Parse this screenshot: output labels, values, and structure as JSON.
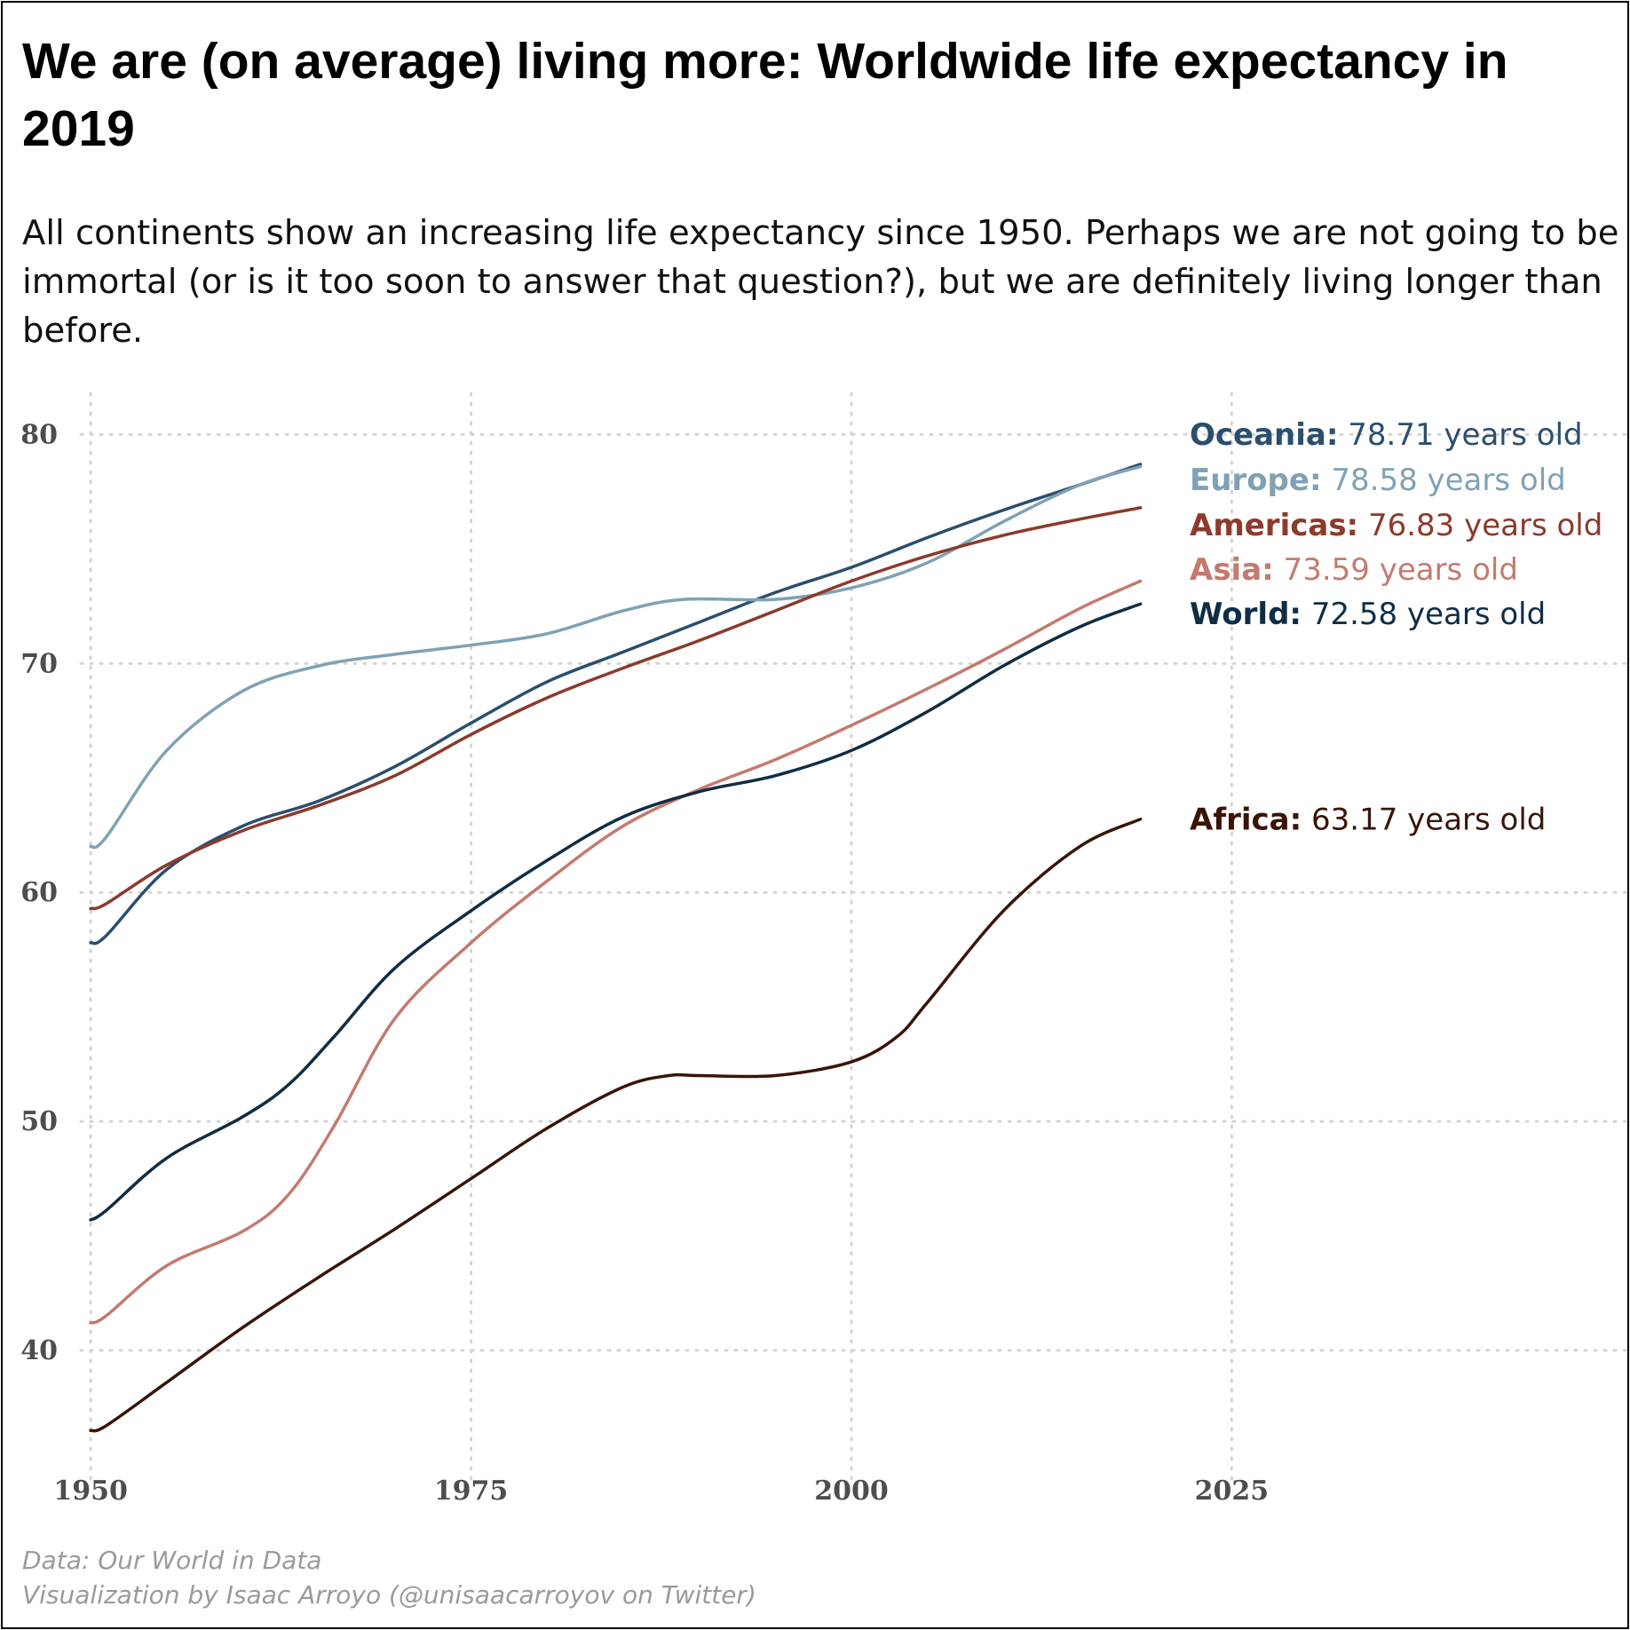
{
  "chart_data": {
    "type": "line",
    "title": "We are (on average) living more: Worldwide life expectancy in 2019",
    "subtitle": "All continents show an increasing life expectancy since 1950. Perhaps we are not going to be immortal (or is it too soon to answer that question?), but we are definitely living longer than before.",
    "xlabel": "",
    "ylabel": "",
    "xlim": [
      1948.3,
      2051
    ],
    "ylim": [
      34.3,
      81.8
    ],
    "x_ticks": [
      1950,
      1975,
      2000,
      2025
    ],
    "y_ticks": [
      40,
      50,
      60,
      70,
      80
    ],
    "grid": true,
    "legend": "direct labels at right end of lines",
    "label_suffix": " years old",
    "series": [
      {
        "name": "Oceania",
        "label_value": "78.71",
        "color": "#2a4e6e",
        "x": [
          1950,
          1951,
          1955,
          1960,
          1965,
          1970,
          1975,
          1980,
          1985,
          1990,
          1995,
          2000,
          2005,
          2010,
          2015,
          2019
        ],
        "values": [
          57.8,
          58.1,
          61.0,
          62.9,
          64.0,
          65.5,
          67.4,
          69.2,
          70.5,
          71.8,
          73.1,
          74.2,
          75.5,
          76.7,
          77.8,
          78.7
        ]
      },
      {
        "name": "Europe",
        "label_value": "78.58",
        "color": "#7fa1b5",
        "x": [
          1950,
          1951,
          1955,
          1960,
          1965,
          1970,
          1975,
          1980,
          1985,
          1989,
          1995,
          2000,
          2005,
          2010,
          2015,
          2019
        ],
        "values": [
          62.0,
          62.4,
          66.2,
          68.8,
          69.9,
          70.4,
          70.8,
          71.3,
          72.3,
          72.8,
          72.8,
          73.3,
          74.4,
          76.2,
          77.8,
          78.6
        ]
      },
      {
        "name": "Americas",
        "label_value": "76.83",
        "color": "#8b3a2b",
        "x": [
          1950,
          1951,
          1955,
          1960,
          1965,
          1970,
          1975,
          1980,
          1985,
          1990,
          1995,
          2000,
          2005,
          2010,
          2015,
          2019
        ],
        "values": [
          59.3,
          59.5,
          61.2,
          62.7,
          63.8,
          65.1,
          66.9,
          68.5,
          69.8,
          71.0,
          72.3,
          73.6,
          74.7,
          75.6,
          76.3,
          76.8
        ]
      },
      {
        "name": "Asia",
        "label_value": "73.59",
        "color": "#c47a6e",
        "x": [
          1950,
          1951,
          1955,
          1960,
          1963,
          1966,
          1970,
          1975,
          1980,
          1985,
          1990,
          1995,
          2000,
          2005,
          2010,
          2015,
          2019
        ],
        "values": [
          41.2,
          41.5,
          43.7,
          45.2,
          46.8,
          49.8,
          54.5,
          57.8,
          60.5,
          62.9,
          64.5,
          65.8,
          67.3,
          68.9,
          70.6,
          72.4,
          73.6
        ]
      },
      {
        "name": "World",
        "label_value": "72.58",
        "color": "#0f2d45",
        "x": [
          1950,
          1951,
          1955,
          1960,
          1963,
          1966,
          1970,
          1975,
          1980,
          1985,
          1990,
          1995,
          2000,
          2005,
          2010,
          2015,
          2019
        ],
        "values": [
          45.7,
          46.1,
          48.4,
          50.2,
          51.6,
          53.7,
          56.7,
          59.2,
          61.4,
          63.3,
          64.4,
          65.1,
          66.2,
          67.9,
          69.9,
          71.6,
          72.6
        ]
      },
      {
        "name": "Africa",
        "label_value": "63.17",
        "color": "#3a1408",
        "x": [
          1950,
          1951,
          1955,
          1960,
          1965,
          1970,
          1975,
          1980,
          1985,
          1988,
          1990,
          1995,
          2000,
          2003,
          2005,
          2010,
          2015,
          2019
        ],
        "values": [
          36.5,
          36.7,
          38.6,
          41.0,
          43.2,
          45.3,
          47.5,
          49.7,
          51.5,
          52.0,
          52.0,
          52.0,
          52.6,
          53.7,
          55.2,
          59.2,
          62.0,
          63.2
        ]
      }
    ]
  },
  "caption": {
    "source": "Data: Our World in Data",
    "credit": "Visualization by Isaac Arroyo (@unisaacarroyov on Twitter)"
  }
}
